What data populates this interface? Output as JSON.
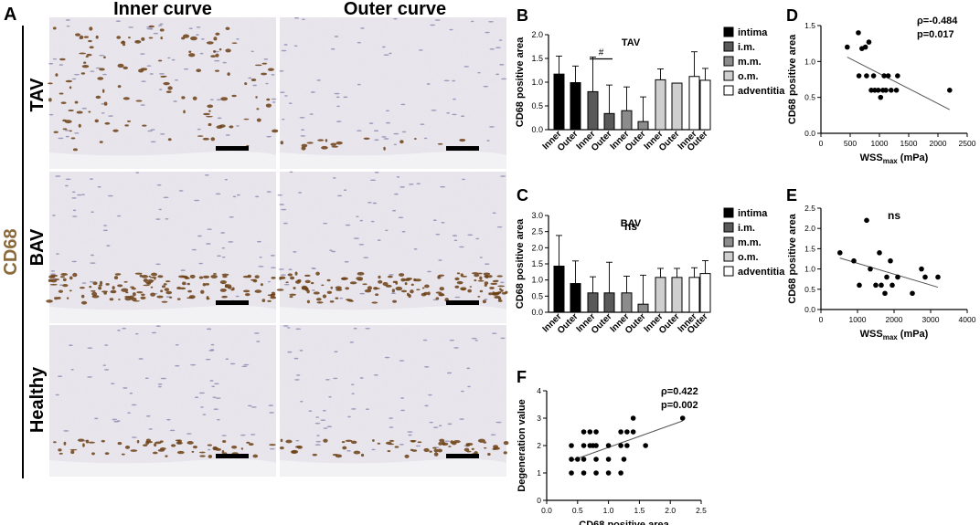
{
  "panel_letters": {
    "A": "A",
    "B": "B",
    "C": "C",
    "D": "D",
    "E": "E",
    "F": "F"
  },
  "panel_a": {
    "col_headers": [
      "Inner curve",
      "Outer curve"
    ],
    "row_labels": [
      "TAV",
      "BAV",
      "Healthy"
    ],
    "side_label": "CD68",
    "side_label_color": "#8c6a3c"
  },
  "colors": {
    "intima": "#000000",
    "im": "#595959",
    "mm": "#8c8c8c",
    "om": "#cfcfcf",
    "adventitia": "#ffffff",
    "tissue": "#d9d5df",
    "stain": "#6b3f14",
    "line": "#555555"
  },
  "chart_data": [
    {
      "id": "B",
      "type": "bar",
      "title": "TAV",
      "ylabel": "CD68 positive area",
      "ylim": [
        0,
        2.0
      ],
      "yticks": [
        "0.0",
        "0.5",
        "1.0",
        "1.5",
        "2.0"
      ],
      "categories": [
        "Inner",
        "Outer",
        "Inner",
        "Outer",
        "Inner",
        "Outer",
        "Inner",
        "Outer",
        "Inner",
        "Outer"
      ],
      "legend": [
        "intima",
        "i.m.",
        "m.m.",
        "o.m.",
        "adventitia"
      ],
      "values": [
        1.17,
        0.99,
        0.8,
        0.34,
        0.4,
        0.17,
        1.05,
        0.98,
        1.12,
        1.04
      ],
      "errors": [
        0.38,
        0.35,
        0.73,
        0.6,
        0.5,
        0.52,
        0.23,
        0.0,
        0.52,
        0.25
      ],
      "annotation": "#"
    },
    {
      "id": "C",
      "type": "bar",
      "title": "BAV",
      "annotation": "ns",
      "ylabel": "CD68 positive area",
      "ylim": [
        0,
        3.0
      ],
      "yticks": [
        "0.0",
        "0.5",
        "1.0",
        "1.5",
        "2.0",
        "2.5",
        "3.0"
      ],
      "categories": [
        "Inner",
        "Outer",
        "Inner",
        "Outer",
        "Inner",
        "Outer",
        "Inner",
        "Outer",
        "Inner",
        "Outer"
      ],
      "legend": [
        "intima",
        "i.m.",
        "m.m.",
        "o.m.",
        "adventitia"
      ],
      "values": [
        1.43,
        0.89,
        0.6,
        0.6,
        0.6,
        0.25,
        1.08,
        1.08,
        1.08,
        1.2
      ],
      "errors": [
        0.95,
        0.7,
        0.5,
        0.95,
        0.52,
        0.9,
        0.28,
        0.28,
        0.3,
        0.4
      ]
    },
    {
      "id": "D",
      "type": "scatter",
      "xlabel_main": "WSS",
      "xlabel_sub": "max",
      "xlabel_unit": " (mPa)",
      "ylabel": "CD68 positive area",
      "xlim": [
        0,
        2500
      ],
      "ylim": [
        0,
        1.5
      ],
      "xticks": [
        "0",
        "500",
        "1000",
        "1500",
        "2000",
        "2500"
      ],
      "yticks": [
        "0.0",
        "0.5",
        "1.0",
        "1.5"
      ],
      "stat1": "ρ=-0.484",
      "stat2": "p=0.017",
      "points": [
        [
          450,
          1.2
        ],
        [
          640,
          1.4
        ],
        [
          700,
          1.18
        ],
        [
          760,
          1.2
        ],
        [
          820,
          1.27
        ],
        [
          650,
          0.8
        ],
        [
          780,
          0.8
        ],
        [
          860,
          0.6
        ],
        [
          900,
          0.8
        ],
        [
          920,
          0.6
        ],
        [
          980,
          0.6
        ],
        [
          1020,
          0.5
        ],
        [
          1060,
          0.6
        ],
        [
          1080,
          0.8
        ],
        [
          1110,
          0.6
        ],
        [
          1150,
          0.8
        ],
        [
          1200,
          0.6
        ],
        [
          1290,
          0.6
        ],
        [
          1310,
          0.8
        ],
        [
          2200,
          0.6
        ]
      ],
      "fit": [
        [
          450,
          1.06
        ],
        [
          2200,
          0.33
        ]
      ]
    },
    {
      "id": "E",
      "type": "scatter",
      "title": "ns",
      "xlabel_main": "WSS",
      "xlabel_sub": "max",
      "xlabel_unit": " (mPa)",
      "ylabel": "CD68 positive area",
      "xlim": [
        0,
        4000
      ],
      "ylim": [
        0,
        2.5
      ],
      "xticks": [
        "0",
        "1000",
        "2000",
        "3000",
        "4000"
      ],
      "yticks": [
        "0.0",
        "0.5",
        "1.0",
        "1.5",
        "2.0",
        "2.5"
      ],
      "points": [
        [
          520,
          1.4
        ],
        [
          900,
          1.2
        ],
        [
          1050,
          0.6
        ],
        [
          1250,
          2.2
        ],
        [
          1350,
          1.0
        ],
        [
          1500,
          0.6
        ],
        [
          1600,
          1.4
        ],
        [
          1650,
          0.6
        ],
        [
          1750,
          0.4
        ],
        [
          1800,
          0.8
        ],
        [
          1900,
          1.2
        ],
        [
          1950,
          0.6
        ],
        [
          2100,
          0.8
        ],
        [
          2500,
          0.4
        ],
        [
          2750,
          1.0
        ],
        [
          2850,
          0.8
        ],
        [
          3200,
          0.8
        ]
      ],
      "fit": [
        [
          520,
          1.27
        ],
        [
          3200,
          0.55
        ]
      ]
    },
    {
      "id": "F",
      "type": "scatter",
      "xlabel": "CD68 positive area",
      "ylabel": "Degeneration value",
      "xlim": [
        0,
        2.5
      ],
      "ylim": [
        0,
        4
      ],
      "xticks": [
        "0.0",
        "0.5",
        "1.0",
        "1.5",
        "2.0",
        "2.5"
      ],
      "yticks": [
        "0",
        "1",
        "2",
        "3",
        "4"
      ],
      "stat1": "ρ=0.422",
      "stat2": "p=0.002",
      "points": [
        [
          0.4,
          1.0
        ],
        [
          0.4,
          1.5
        ],
        [
          0.4,
          2.0
        ],
        [
          0.5,
          1.5
        ],
        [
          0.6,
          1.0
        ],
        [
          0.6,
          1.5
        ],
        [
          0.6,
          2.0
        ],
        [
          0.6,
          2.5
        ],
        [
          0.7,
          2.0
        ],
        [
          0.7,
          2.5
        ],
        [
          0.75,
          2.0
        ],
        [
          0.8,
          1.0
        ],
        [
          0.8,
          1.5
        ],
        [
          0.8,
          2.5
        ],
        [
          0.8,
          2.0
        ],
        [
          1.0,
          1.0
        ],
        [
          1.0,
          1.5
        ],
        [
          1.0,
          2.0
        ],
        [
          1.2,
          1.0
        ],
        [
          1.2,
          2.0
        ],
        [
          1.2,
          2.5
        ],
        [
          1.25,
          1.5
        ],
        [
          1.3,
          2.0
        ],
        [
          1.3,
          2.5
        ],
        [
          1.4,
          3.0
        ],
        [
          1.4,
          2.5
        ],
        [
          1.6,
          2.0
        ],
        [
          2.2,
          3.0
        ]
      ],
      "fit": [
        [
          0.4,
          1.45
        ],
        [
          2.2,
          2.9
        ]
      ]
    }
  ]
}
